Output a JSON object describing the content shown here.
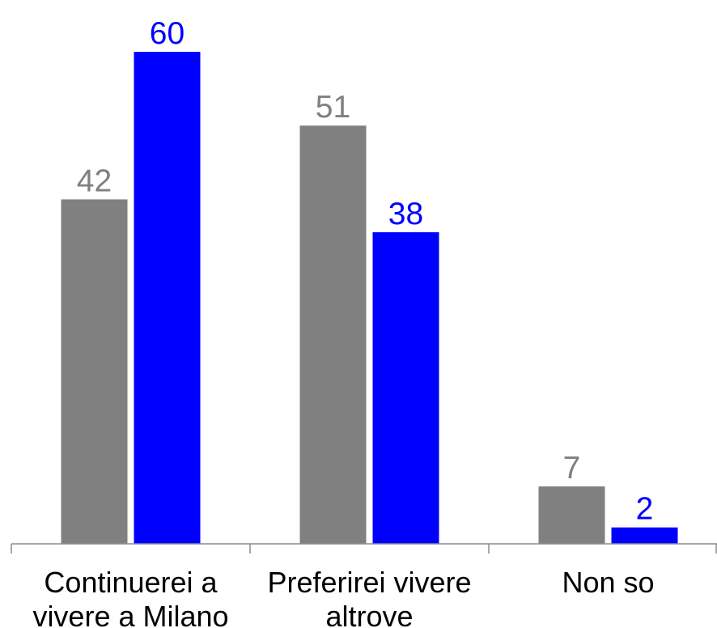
{
  "chart_data": {
    "type": "bar",
    "categories": [
      [
        "Continuerei a",
        "vivere a Milano"
      ],
      [
        "Preferirei vivere",
        "altrove"
      ],
      [
        "Non so"
      ]
    ],
    "series": [
      {
        "values": [
          42,
          51,
          7
        ],
        "color": "#808080"
      },
      {
        "values": [
          60,
          38,
          2
        ],
        "color": "#0000ff"
      }
    ],
    "title": "",
    "xlabel": "",
    "ylabel": "",
    "ylim": [
      0,
      60
    ],
    "grid": false,
    "legend": "none",
    "data_labels": true
  }
}
